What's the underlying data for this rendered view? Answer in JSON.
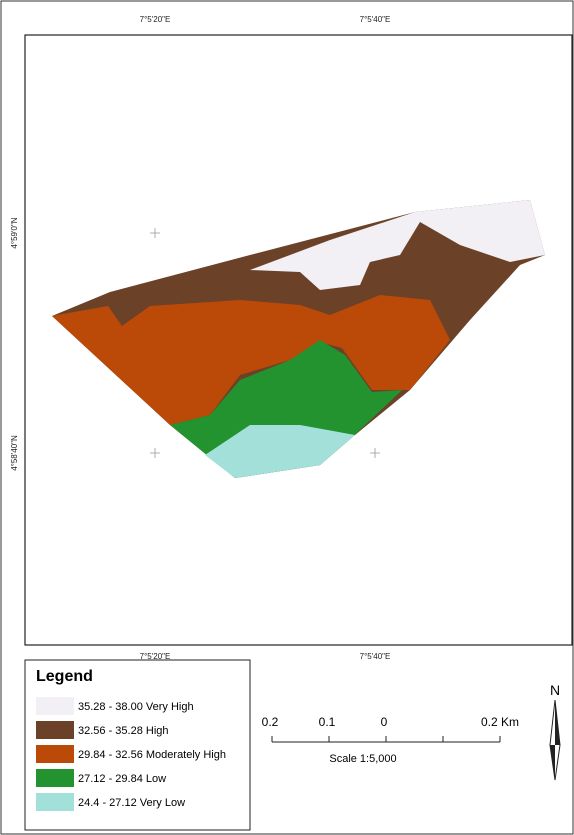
{
  "map": {
    "top_labels": [
      "7°5'20\"E",
      "7°5'40\"E"
    ],
    "bottom_labels": [
      "7°5'20\"E",
      "7°5'40\"E"
    ],
    "left_labels": [
      "4°59'0\"N",
      "4°58'40\"N"
    ]
  },
  "legend": {
    "title": "Legend",
    "items": [
      {
        "label": "35.28 - 38.00 Very High",
        "color": "#f2f0f5"
      },
      {
        "label": "32.56 - 35.28 High",
        "color": "#6b4227"
      },
      {
        "label": "29.84 - 32.56 Moderately High",
        "color": "#bb4a08"
      },
      {
        "label": "27.12 - 29.84 Low",
        "color": "#23932f"
      },
      {
        "label": "24.4 - 27.12 Very Low",
        "color": "#a4e0da"
      }
    ]
  },
  "scale_bar": {
    "labels": [
      "0.2",
      "0.1",
      "0",
      "0.2 Km"
    ],
    "text": "Scale 1:5,000"
  },
  "north": "N"
}
